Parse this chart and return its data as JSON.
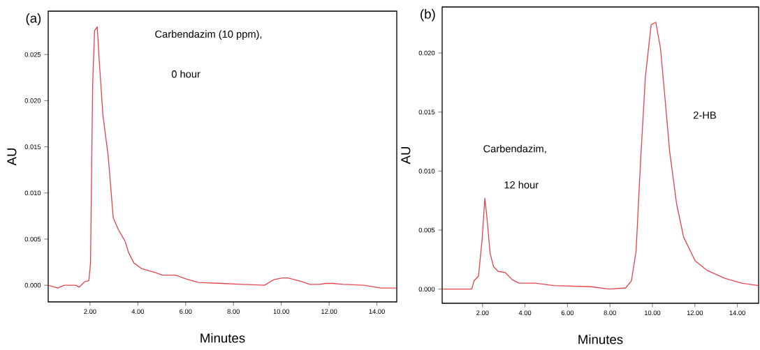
{
  "chart_data": [
    {
      "type": "line",
      "title": "(a)",
      "xlabel": "Minutes",
      "ylabel": "AU",
      "series": [
        {
          "color": "#e2474f",
          "x": [
            0.25,
            0.65,
            0.92,
            1.41,
            1.55,
            1.78,
            1.95,
            2.02,
            2.11,
            2.19,
            2.3,
            2.38,
            2.54,
            2.76,
            2.97,
            3.19,
            3.46,
            3.62,
            3.84,
            4.16,
            4.7,
            5.03,
            5.57,
            6.0,
            6.54,
            7.51,
            8.38,
            9.3,
            9.68,
            10.05,
            10.27,
            10.86,
            11.19,
            11.62,
            11.84,
            12.16,
            12.59,
            13.46,
            14.16,
            14.81
          ],
          "values": [
            0.0,
            -0.0003,
            0.0,
            0.0,
            -0.0002,
            0.0004,
            0.0005,
            0.0024,
            0.0217,
            0.0276,
            0.028,
            0.0245,
            0.0184,
            0.014,
            0.0073,
            0.006,
            0.0048,
            0.0035,
            0.0024,
            0.0018,
            0.0014,
            0.0011,
            0.0011,
            0.0007,
            0.0003,
            0.0002,
            0.0001,
            0.0,
            0.0006,
            0.0008,
            0.0008,
            0.0004,
            0.0001,
            0.0001,
            0.0002,
            0.0002,
            0.0001,
            0.0,
            -0.0003,
            -0.0003
          ]
        }
      ],
      "xlim": [
        0.25,
        14.83
      ],
      "ylim": [
        -0.0018,
        0.0297
      ],
      "xticks": [
        {
          "value": 2,
          "label": "2.00"
        },
        {
          "value": 4,
          "label": "4.00"
        },
        {
          "value": 6,
          "label": "6.00"
        },
        {
          "value": 8,
          "label": "8.00"
        },
        {
          "value": 10,
          "label": "10.00"
        },
        {
          "value": 12,
          "label": "12.00"
        },
        {
          "value": 14,
          "label": "14.00"
        }
      ],
      "yticks": [
        {
          "value": 0,
          "label": "0.000"
        },
        {
          "value": 0.005,
          "label": "0.005"
        },
        {
          "value": 0.01,
          "label": "0.010"
        },
        {
          "value": 0.015,
          "label": "0.015"
        },
        {
          "value": 0.02,
          "label": "0.020"
        },
        {
          "value": 0.025,
          "label": "0.025"
        }
      ],
      "annotations": [
        "Carbendazim (10 ppm),",
        "0 hour"
      ]
    },
    {
      "type": "line",
      "title": "(b)",
      "xlabel": "Minutes",
      "ylabel": "AU",
      "series": [
        {
          "color": "#e2474f",
          "x": [
            0.1,
            1.49,
            1.6,
            1.81,
            1.98,
            2.11,
            2.2,
            2.36,
            2.52,
            2.74,
            3.07,
            3.4,
            3.72,
            4.49,
            5.36,
            7.11,
            7.98,
            8.74,
            9.01,
            9.23,
            9.45,
            9.67,
            9.94,
            10.16,
            10.38,
            10.6,
            10.81,
            11.14,
            11.47,
            12.01,
            12.56,
            13.43,
            14.2,
            15.0
          ],
          "values": [
            0.0,
            0.0,
            0.0007,
            0.0011,
            0.0042,
            0.0077,
            0.0062,
            0.003,
            0.0019,
            0.0015,
            0.0014,
            0.0008,
            0.0005,
            0.0005,
            0.0003,
            0.0002,
            0.0,
            0.0001,
            0.0007,
            0.0032,
            0.0111,
            0.018,
            0.0224,
            0.0226,
            0.0204,
            0.016,
            0.0117,
            0.0072,
            0.0044,
            0.0024,
            0.0016,
            0.0009,
            0.0005,
            0.0003
          ]
        }
      ],
      "xlim": [
        0.1,
        15.0
      ],
      "ylim": [
        -0.0012,
        0.0239
      ],
      "xticks": [
        {
          "value": 2,
          "label": "2.00"
        },
        {
          "value": 4,
          "label": "4.00"
        },
        {
          "value": 6,
          "label": "6.00"
        },
        {
          "value": 8,
          "label": "8.00"
        },
        {
          "value": 10,
          "label": "10.00"
        },
        {
          "value": 12,
          "label": "12.00"
        },
        {
          "value": 14,
          "label": "14.00"
        }
      ],
      "yticks": [
        {
          "value": 0,
          "label": "0.000"
        },
        {
          "value": 0.005,
          "label": "0.005"
        },
        {
          "value": 0.01,
          "label": "0.010"
        },
        {
          "value": 0.015,
          "label": "0.015"
        },
        {
          "value": 0.02,
          "label": "0.020"
        }
      ],
      "annotations": [
        "Carbendazim,",
        "12 hour",
        "2-HB"
      ]
    }
  ]
}
